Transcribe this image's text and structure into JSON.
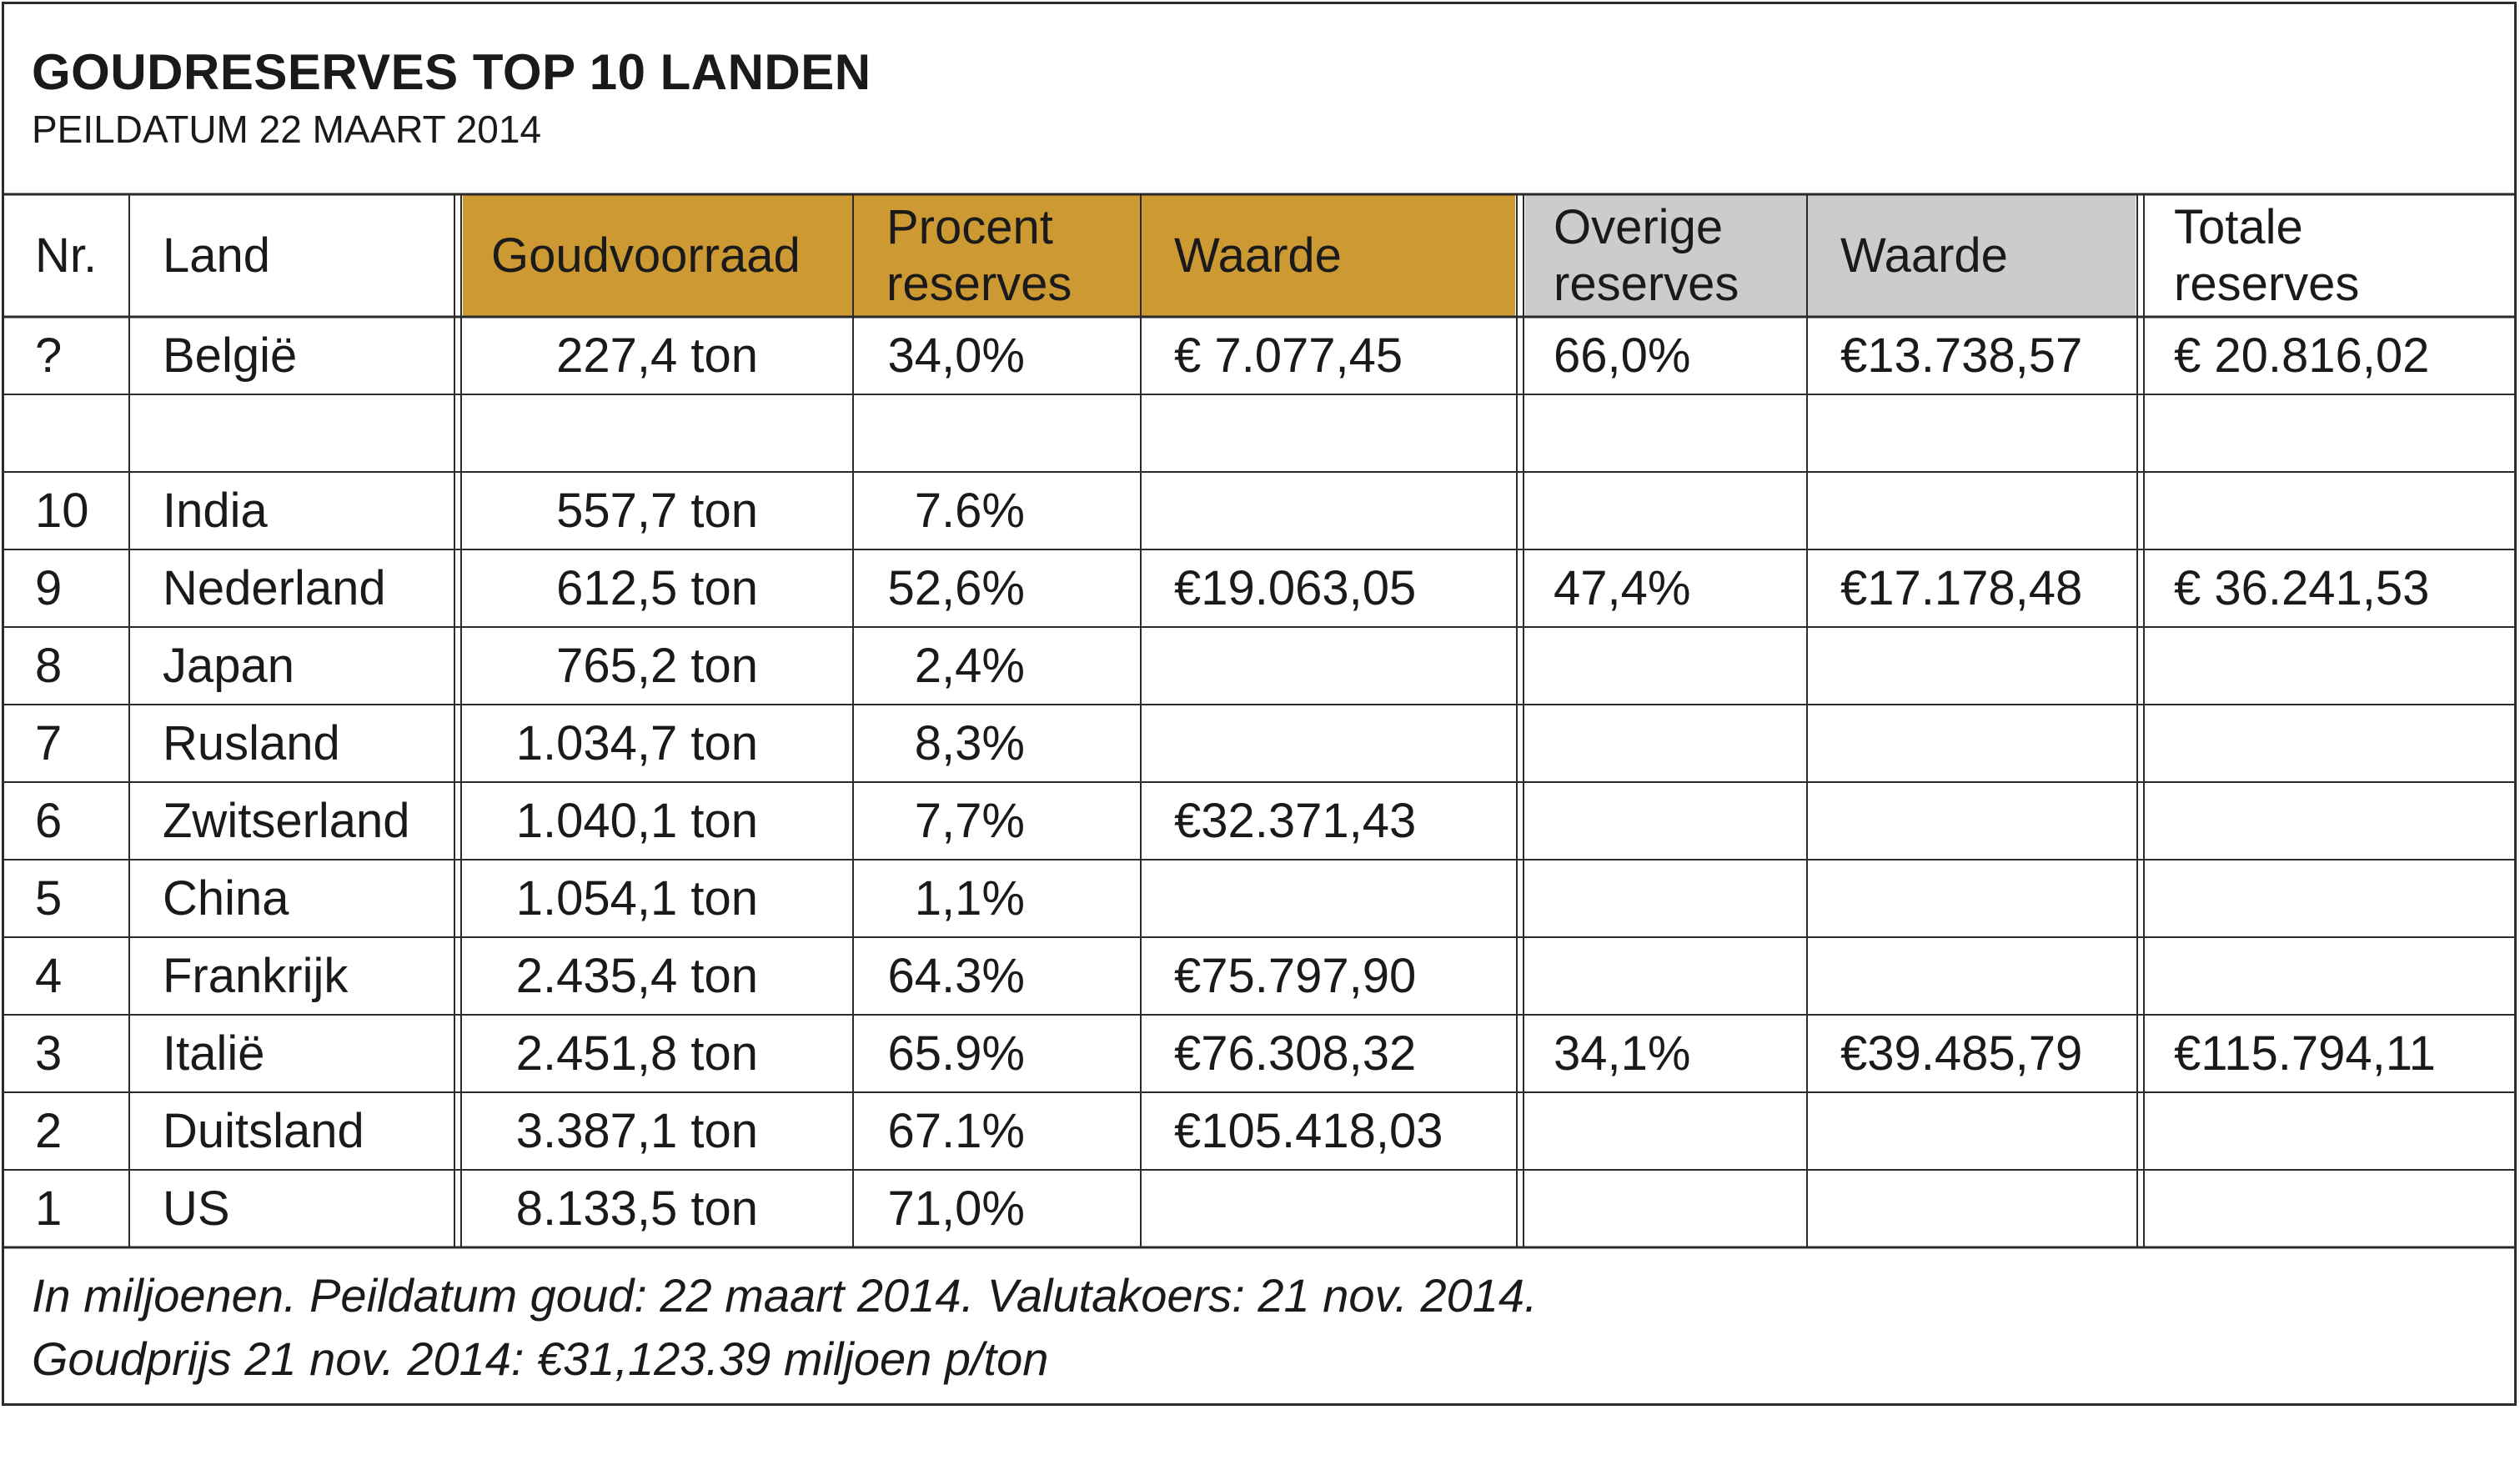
{
  "title": "GOUDRESERVES TOP 10 LANDEN",
  "subtitle": "PEILDATUM 22 MAART 2014",
  "footnote_line1": "In miljoenen. Peildatum goud: 22 maart 2014. Valutakoers: 21 nov. 2014.",
  "footnote_line2": "Goudprijs 21 nov. 2014: €31,123.39 miljoen p/ton",
  "colors": {
    "gold_header": "#cc9933",
    "gray_header": "#cccccc",
    "border": "#2a2a2a"
  },
  "chart_data": {
    "type": "table",
    "columns": [
      "Nr.",
      "Land",
      "Goudvoorraad",
      "Procent\nreserves",
      "Waarde",
      "Overige\nreserves",
      "Waarde",
      "Totale\nreserves"
    ],
    "rows": [
      [
        "?",
        "België",
        "227,4 ton",
        "34,0%",
        "€  7.077,45",
        "66,0%",
        "€13.738,57",
        "€ 20.816,02"
      ],
      [
        "",
        "",
        "",
        "",
        "",
        "",
        "",
        ""
      ],
      [
        "10",
        "India",
        "557,7 ton",
        "7.6%",
        "",
        "",
        "",
        ""
      ],
      [
        "9",
        "Nederland",
        "612,5 ton",
        "52,6%",
        "€19.063,05",
        "47,4%",
        "€17.178,48",
        "€ 36.241,53"
      ],
      [
        "8",
        "Japan",
        "765,2 ton",
        "2,4%",
        "",
        "",
        "",
        ""
      ],
      [
        "7",
        "Rusland",
        "1.034,7 ton",
        "8,3%",
        "",
        "",
        "",
        ""
      ],
      [
        "6",
        "Zwitserland",
        "1.040,1 ton",
        "7,7%",
        "€32.371,43",
        "",
        "",
        ""
      ],
      [
        "5",
        "China",
        "1.054,1 ton",
        "1,1%",
        "",
        "",
        "",
        ""
      ],
      [
        "4",
        "Frankrijk",
        "2.435,4 ton",
        "64.3%",
        "€75.797,90",
        "",
        "",
        ""
      ],
      [
        "3",
        "Italië",
        "2.451,8 ton",
        "65.9%",
        "€76.308,32",
        "34,1%",
        "€39.485,79",
        "€115.794,11"
      ],
      [
        "2",
        "Duitsland",
        "3.387,1 ton",
        "67.1%",
        "€105.418,03",
        "",
        "",
        ""
      ],
      [
        "1",
        "US",
        "8.133,5 ton",
        "71,0%",
        "",
        "",
        "",
        ""
      ]
    ]
  }
}
